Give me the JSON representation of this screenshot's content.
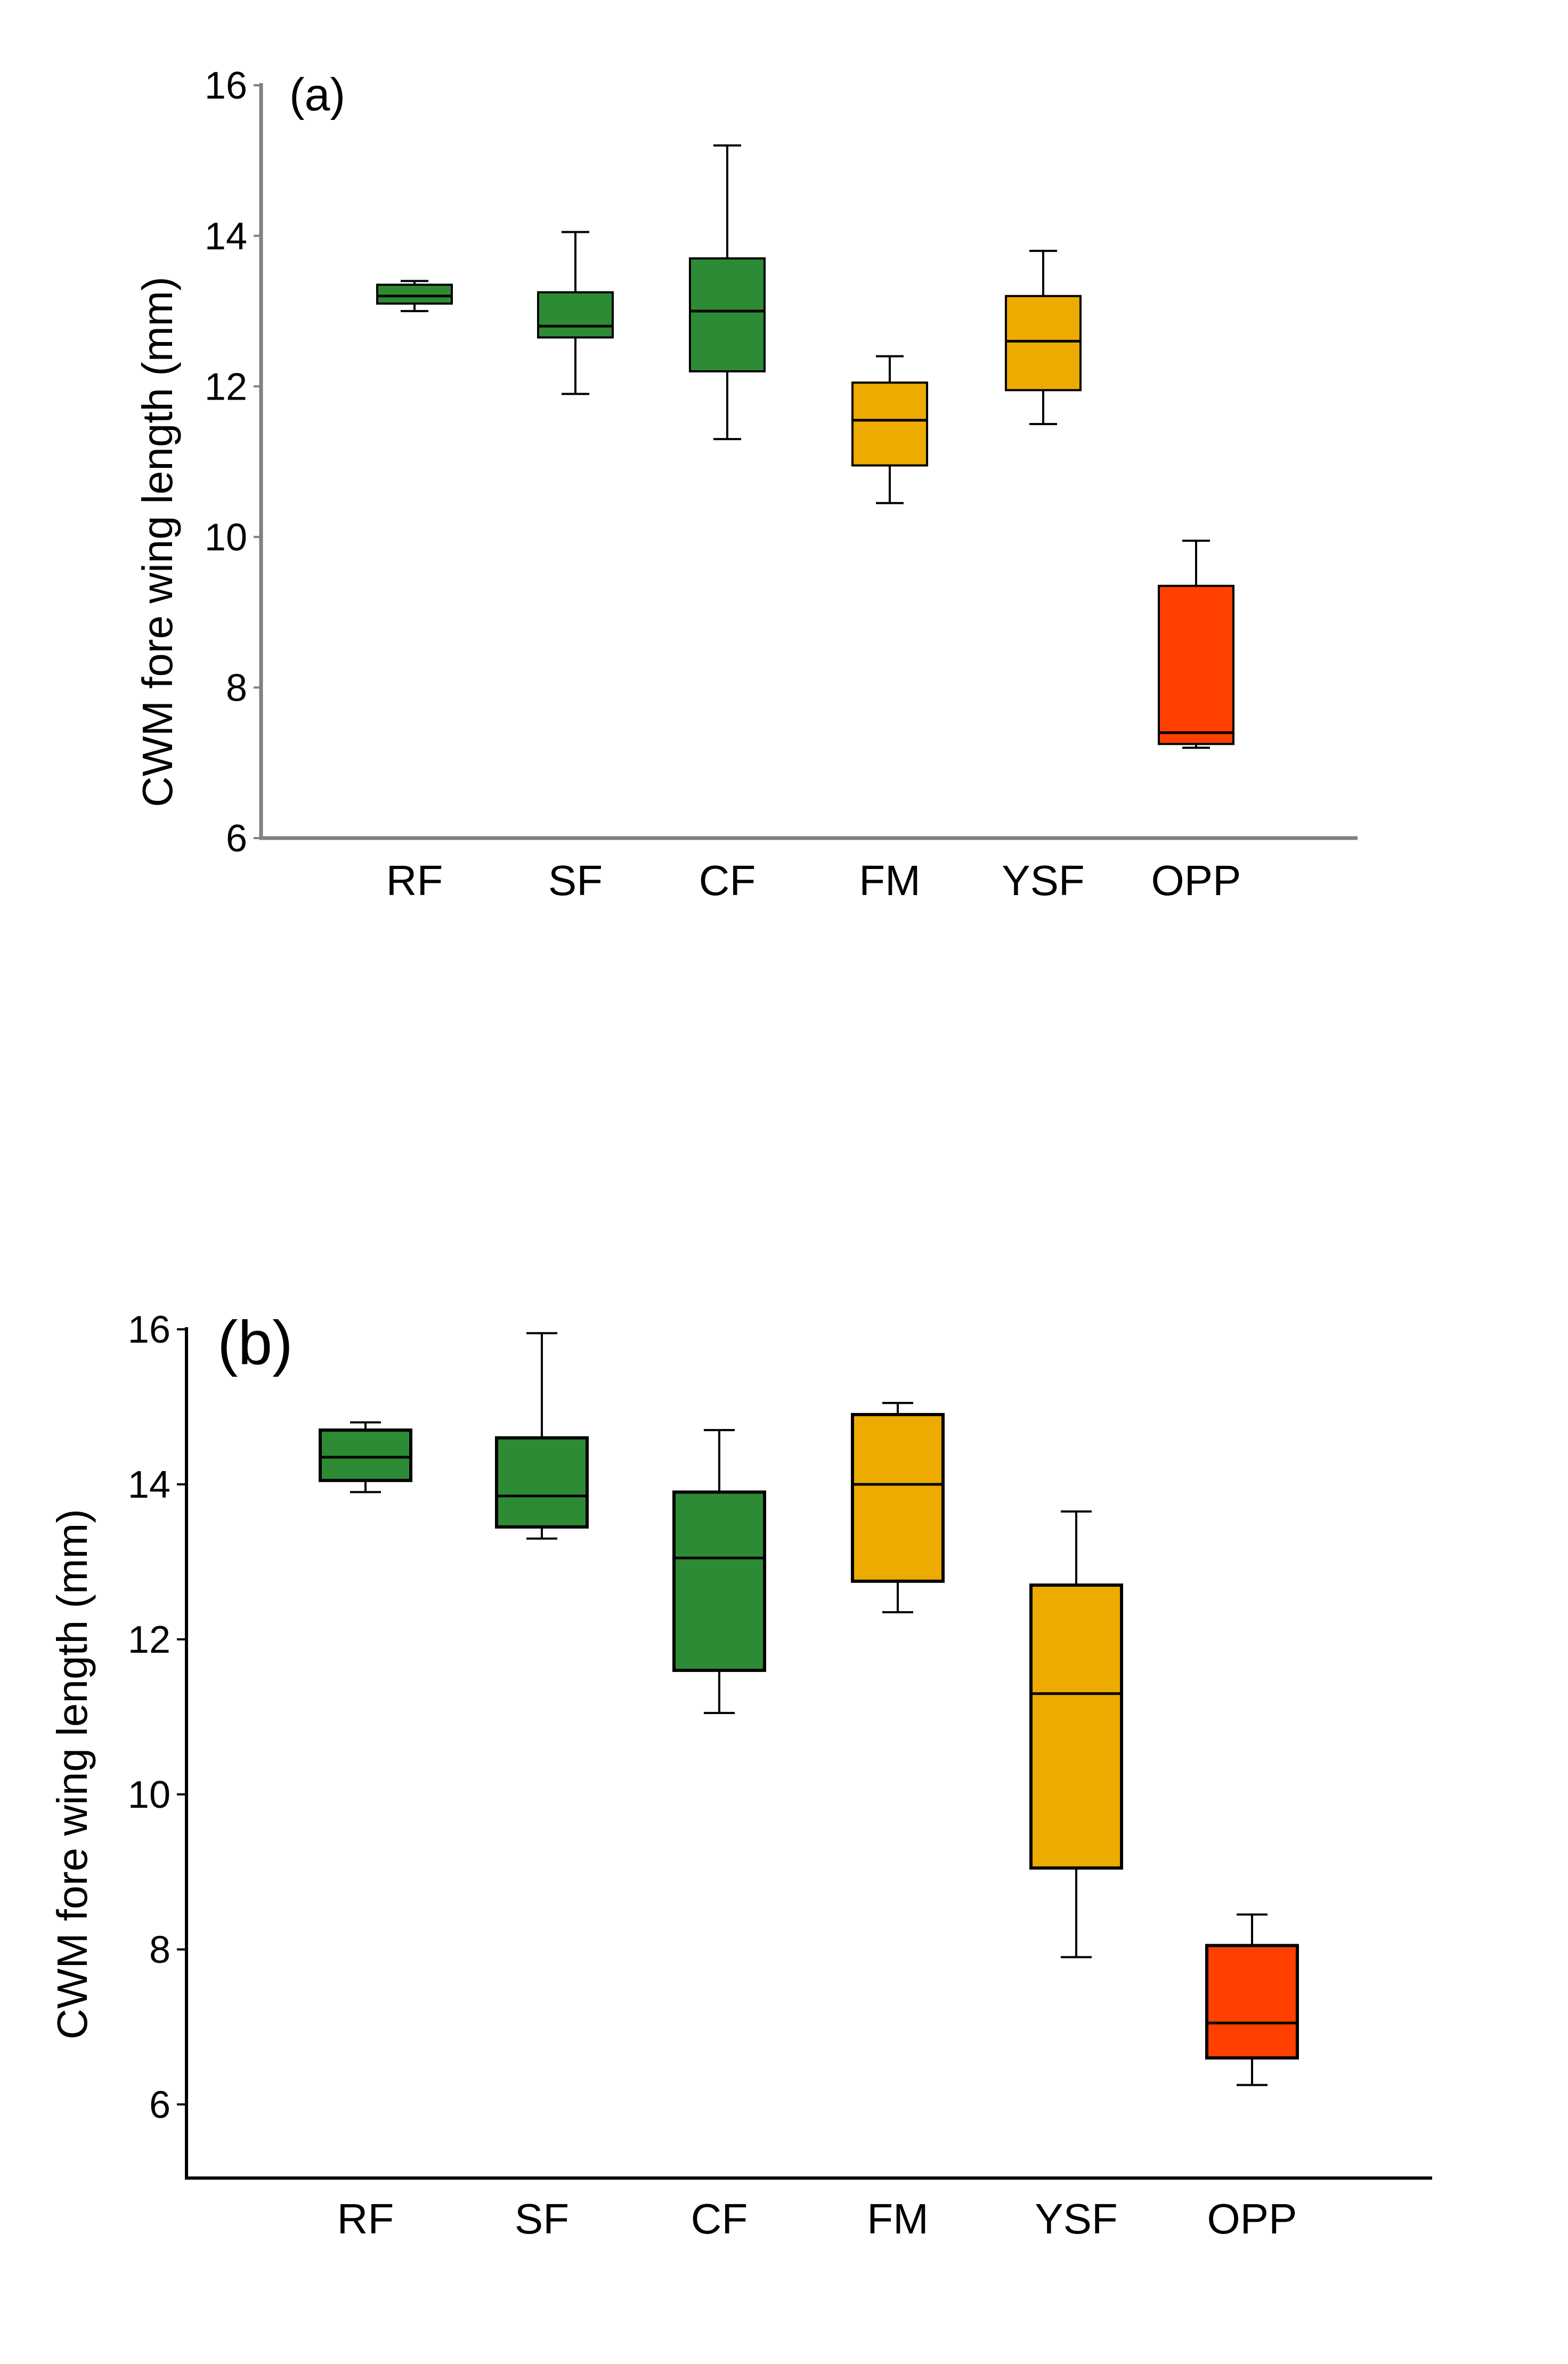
{
  "colors": {
    "forest": "#2e8b35",
    "intermediate": "#edab00",
    "open": "#ff4000",
    "axis_a": "#808080",
    "axis_b": "#000000",
    "box_stroke": "#000000",
    "background": "#ffffff"
  },
  "chart_data": [
    {
      "panel_label": "(a)",
      "type": "box",
      "title": "",
      "ylabel": "CWM fore wing length (mm)",
      "xlabel": "",
      "ylim": [
        6,
        16
      ],
      "yticks": [
        6,
        8,
        10,
        12,
        14,
        16
      ],
      "grid": false,
      "categories": [
        "RF",
        "SF",
        "CF",
        "FM",
        "YSF",
        "OPP"
      ],
      "groups": [
        "forest",
        "forest",
        "forest",
        "intermediate",
        "intermediate",
        "open"
      ],
      "series": [
        {
          "name": "RF",
          "whisker_low": 13.0,
          "q1": 13.1,
          "median": 13.2,
          "q3": 13.35,
          "whisker_high": 13.4
        },
        {
          "name": "SF",
          "whisker_low": 11.9,
          "q1": 12.65,
          "median": 12.8,
          "q3": 13.25,
          "whisker_high": 14.05
        },
        {
          "name": "CF",
          "whisker_low": 11.3,
          "q1": 12.2,
          "median": 13.0,
          "q3": 13.7,
          "whisker_high": 15.2
        },
        {
          "name": "FM",
          "whisker_low": 10.45,
          "q1": 10.95,
          "median": 11.55,
          "q3": 12.05,
          "whisker_high": 12.4
        },
        {
          "name": "YSF",
          "whisker_low": 11.5,
          "q1": 11.95,
          "median": 12.6,
          "q3": 13.2,
          "whisker_high": 13.8
        },
        {
          "name": "OPP",
          "whisker_low": 7.2,
          "q1": 7.25,
          "median": 7.4,
          "q3": 9.35,
          "whisker_high": 9.95
        }
      ]
    },
    {
      "panel_label": "(b)",
      "type": "box",
      "title": "",
      "ylabel": "CWM fore wing length (mm)",
      "xlabel": "",
      "ylim": [
        5.05,
        16
      ],
      "yticks": [
        6,
        8,
        10,
        12,
        14,
        16
      ],
      "grid": false,
      "categories": [
        "RF",
        "SF",
        "CF",
        "FM",
        "YSF",
        "OPP"
      ],
      "groups": [
        "forest",
        "forest",
        "forest",
        "intermediate",
        "intermediate",
        "open"
      ],
      "series": [
        {
          "name": "RF",
          "whisker_low": 13.9,
          "q1": 14.05,
          "median": 14.35,
          "q3": 14.7,
          "whisker_high": 14.8
        },
        {
          "name": "SF",
          "whisker_low": 13.3,
          "q1": 13.45,
          "median": 13.85,
          "q3": 14.6,
          "whisker_high": 15.95
        },
        {
          "name": "CF",
          "whisker_low": 11.05,
          "q1": 11.6,
          "median": 13.05,
          "q3": 13.9,
          "whisker_high": 14.7
        },
        {
          "name": "FM",
          "whisker_low": 12.35,
          "q1": 12.75,
          "median": 14.0,
          "q3": 14.9,
          "whisker_high": 15.05
        },
        {
          "name": "YSF",
          "whisker_low": 7.9,
          "q1": 9.05,
          "median": 11.3,
          "q3": 12.7,
          "whisker_high": 13.65
        },
        {
          "name": "OPP",
          "whisker_low": 6.25,
          "q1": 6.6,
          "median": 7.05,
          "q3": 8.05,
          "whisker_high": 8.45
        }
      ]
    }
  ]
}
